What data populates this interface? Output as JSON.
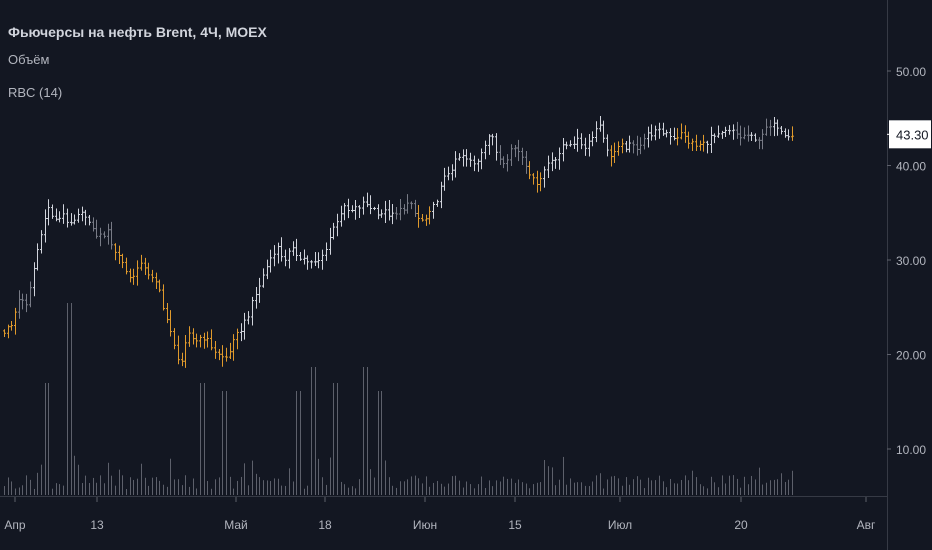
{
  "legend": {
    "title": "Фьючерсы на нефть Brent, 4Ч, MOEX",
    "volume": "Объём",
    "indicator": "RBC (14)"
  },
  "colors": {
    "background": "#131722",
    "bar_white": "#d1d4dc",
    "bar_gray": "#787b86",
    "bar_orange": "#e09a2c",
    "volume": "#5d606b",
    "axis_text": "#b2b5be",
    "label_bg": "#ffffff",
    "label_text": "#131722"
  },
  "chart_data": {
    "type": "ohlc",
    "y_ticks": [
      10,
      20,
      30,
      40,
      50
    ],
    "ylim": [
      5,
      57
    ],
    "x_ticks": [
      "Апр",
      "13",
      "Май",
      "18",
      "Июн",
      "15",
      "Июл",
      "20",
      "Авг"
    ],
    "last_price": "43.30",
    "price_path": [
      [
        0,
        22.5
      ],
      [
        1,
        23
      ],
      [
        2,
        26
      ],
      [
        3,
        25
      ],
      [
        4,
        29
      ],
      [
        5,
        33
      ],
      [
        6,
        35.5
      ],
      [
        7,
        34
      ],
      [
        8,
        35
      ],
      [
        9,
        33.5
      ],
      [
        10,
        34.5
      ],
      [
        11,
        35
      ],
      [
        12,
        33
      ],
      [
        13,
        32.5
      ],
      [
        14,
        33
      ],
      [
        15,
        31
      ],
      [
        16,
        30
      ],
      [
        17,
        28
      ],
      [
        18,
        29
      ],
      [
        19,
        29.5
      ],
      [
        20,
        28
      ],
      [
        21,
        27
      ],
      [
        22,
        24
      ],
      [
        23,
        21
      ],
      [
        24,
        19
      ],
      [
        25,
        22
      ],
      [
        26,
        21.5
      ],
      [
        27,
        22
      ],
      [
        28,
        21
      ],
      [
        29,
        20
      ],
      [
        30,
        19.5
      ],
      [
        31,
        21
      ],
      [
        32,
        22.5
      ],
      [
        33,
        24
      ],
      [
        34,
        26
      ],
      [
        35,
        28
      ],
      [
        36,
        30
      ],
      [
        37,
        31.5
      ],
      [
        38,
        30
      ],
      [
        39,
        31
      ],
      [
        40,
        30.5
      ],
      [
        41,
        30
      ],
      [
        42,
        29.5
      ],
      [
        43,
        30
      ],
      [
        44,
        32
      ],
      [
        45,
        34
      ],
      [
        46,
        35.5
      ],
      [
        47,
        35
      ],
      [
        48,
        35.5
      ],
      [
        49,
        36
      ],
      [
        50,
        35.5
      ],
      [
        51,
        35
      ],
      [
        52,
        35
      ],
      [
        53,
        34.5
      ],
      [
        54,
        35.5
      ],
      [
        55,
        36
      ],
      [
        56,
        34.5
      ],
      [
        57,
        34
      ],
      [
        58,
        35
      ],
      [
        59,
        37
      ],
      [
        60,
        39
      ],
      [
        61,
        40
      ],
      [
        62,
        41
      ],
      [
        63,
        40.5
      ],
      [
        64,
        40
      ],
      [
        65,
        42
      ],
      [
        66,
        43.5
      ],
      [
        67,
        41
      ],
      [
        68,
        40.5
      ],
      [
        69,
        42
      ],
      [
        70,
        41.5
      ],
      [
        71,
        40
      ],
      [
        72,
        38
      ],
      [
        73,
        39
      ],
      [
        74,
        40.5
      ],
      [
        75,
        41
      ],
      [
        76,
        42
      ],
      [
        77,
        42.5
      ],
      [
        78,
        42.5
      ],
      [
        79,
        42
      ],
      [
        80,
        43.5
      ],
      [
        81,
        44.5
      ],
      [
        82,
        41
      ],
      [
        83,
        41.5
      ],
      [
        84,
        42
      ],
      [
        85,
        42
      ],
      [
        86,
        42
      ],
      [
        87,
        43
      ],
      [
        88,
        43.5
      ],
      [
        89,
        43.5
      ],
      [
        90,
        43.5
      ],
      [
        91,
        43
      ],
      [
        92,
        43.3
      ],
      [
        93,
        42.5
      ],
      [
        94,
        42
      ],
      [
        95,
        42.3
      ],
      [
        96,
        43
      ],
      [
        97,
        43
      ],
      [
        98,
        43.5
      ],
      [
        99,
        43.5
      ],
      [
        100,
        43
      ],
      [
        101,
        43.2
      ],
      [
        102,
        42.5
      ],
      [
        103,
        43.5
      ],
      [
        104,
        44
      ],
      [
        105,
        44.3
      ],
      [
        106,
        43.5
      ],
      [
        107,
        43.3
      ]
    ],
    "orange_ranges": [
      [
        0,
        1
      ],
      [
        15,
        31
      ],
      [
        56,
        57
      ],
      [
        71,
        72
      ],
      [
        82,
        83
      ],
      [
        91,
        92
      ],
      [
        93,
        94
      ],
      [
        107,
        107
      ]
    ],
    "gray_ranges": [
      [
        2,
        3
      ],
      [
        12,
        14
      ],
      [
        53,
        55
      ],
      [
        67,
        70
      ],
      [
        85,
        86
      ],
      [
        99,
        100
      ],
      [
        102,
        103
      ]
    ],
    "volume_spikes": [
      [
        6,
        14
      ],
      [
        9,
        24
      ],
      [
        27,
        14
      ],
      [
        30,
        13
      ],
      [
        40,
        13
      ],
      [
        42,
        16
      ],
      [
        45,
        14
      ],
      [
        49,
        16
      ],
      [
        51,
        13
      ]
    ]
  }
}
